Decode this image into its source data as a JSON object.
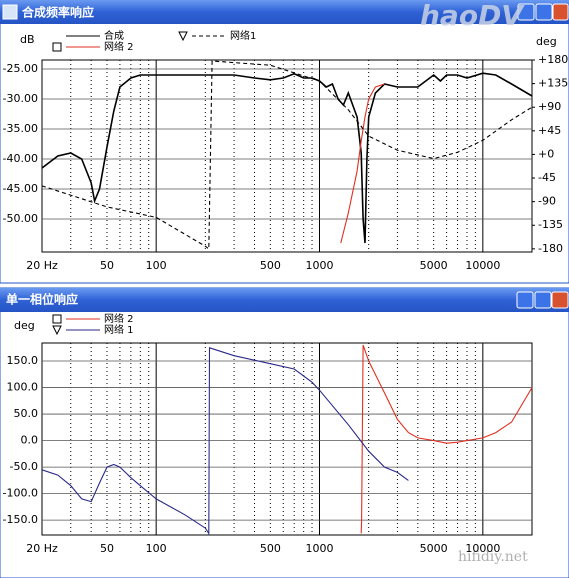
{
  "chart_data": [
    {
      "type": "line",
      "window_title": "合成频率响应",
      "y_label": "dB",
      "y2_label": "deg",
      "log_x": true,
      "xlim": [
        20,
        20000
      ],
      "xticks": [
        {
          "value": 20,
          "label": "20 Hz"
        },
        50,
        100,
        500,
        1000,
        5000,
        10000
      ],
      "xticks_minor": [
        30,
        40,
        60,
        70,
        80,
        90,
        200,
        300,
        400,
        600,
        700,
        800,
        900,
        2000,
        3000,
        4000,
        6000,
        7000,
        8000,
        9000
      ],
      "ylim": [
        -55.5,
        -23.5
      ],
      "yticks": [
        {
          "value": -25,
          "label": "-25.00"
        },
        {
          "value": -30,
          "label": "-30.00"
        },
        {
          "value": -35,
          "label": "-35.00"
        },
        {
          "value": -40,
          "label": "-40.00"
        },
        {
          "value": -45,
          "label": "-45.00"
        },
        {
          "value": -50,
          "label": "-50.00"
        }
      ],
      "y2lim": [
        -186,
        180
      ],
      "y2ticks": [
        {
          "value": 180,
          "label": "+180"
        },
        {
          "value": 135,
          "label": "+135"
        },
        {
          "value": 90,
          "label": "+90"
        },
        {
          "value": 45,
          "label": "+45"
        },
        {
          "value": 0,
          "label": "+0"
        },
        -45,
        -90,
        -135,
        -180
      ],
      "series": [
        {
          "name": "合成",
          "color": "#000000",
          "x": [
            20,
            25,
            30,
            35,
            40,
            42,
            45,
            50,
            55,
            60,
            70,
            80,
            100,
            150,
            200,
            300,
            400,
            500,
            600,
            700,
            800,
            900,
            1000,
            1100,
            1200,
            1300,
            1400,
            1500,
            1700,
            1800,
            1850,
            1900,
            1950,
            2000,
            2200,
            2500,
            3000,
            4000,
            5000,
            5500,
            6000,
            7000,
            8000,
            10000,
            12000,
            15000,
            20000
          ],
          "values": [
            -41.5,
            -39.5,
            -39,
            -40,
            -44,
            -47,
            -45,
            -38,
            -32,
            -28,
            -26.5,
            -26,
            -26,
            -26,
            -26,
            -26,
            -26.5,
            -26.8,
            -26.5,
            -25.8,
            -26.5,
            -26.5,
            -27,
            -28,
            -27.5,
            -30,
            -31,
            -29,
            -33,
            -39,
            -50,
            -54,
            -40,
            -33,
            -29,
            -27.5,
            -28,
            -28,
            -26,
            -27,
            -26,
            -26,
            -26.5,
            -25.7,
            -26,
            -27.5,
            -29.5
          ]
        },
        {
          "name": "网络 2",
          "color": "#e03020",
          "marker": "square",
          "x": [
            1350,
            1500,
            1700,
            1800,
            1900,
            2000,
            2200,
            2500
          ],
          "values": [
            -54,
            -49,
            -42,
            -37,
            -33,
            -30,
            -28,
            -27.5
          ]
        },
        {
          "name": "网络1",
          "color": "#000000",
          "marker": "triangle",
          "dash": true,
          "axis": "y2",
          "x": [
            20,
            50,
            100,
            200,
            210,
            220,
            300,
            500,
            1000,
            1500,
            2000,
            3000,
            5000,
            7000,
            10000,
            15000,
            20000
          ],
          "values": [
            -60,
            -100,
            -120,
            -175,
            -180,
            178,
            175,
            170,
            140,
            85,
            35,
            8,
            -8,
            4,
            27,
            66,
            90
          ]
        }
      ]
    },
    {
      "type": "line",
      "window_title": "单一相位响应",
      "y_label": "deg",
      "log_x": true,
      "xlim": [
        20,
        20000
      ],
      "xticks": [
        {
          "value": 20,
          "label": "20 Hz"
        },
        50,
        100,
        500,
        1000,
        5000,
        10000
      ],
      "xticks_minor": [
        30,
        40,
        60,
        70,
        80,
        90,
        200,
        300,
        400,
        600,
        700,
        800,
        900,
        2000,
        3000,
        4000,
        6000,
        7000,
        8000,
        9000
      ],
      "ylim": [
        -178,
        184
      ],
      "yticks": [
        {
          "value": 150,
          "label": "150.0"
        },
        {
          "value": 100,
          "label": "100.0"
        },
        {
          "value": 50,
          "label": "50.0"
        },
        {
          "value": 0,
          "label": "0.0"
        },
        {
          "value": -50,
          "label": "-50.0"
        },
        {
          "value": -100,
          "label": "-100.0"
        },
        {
          "value": -150,
          "label": "-150.0"
        }
      ],
      "series": [
        {
          "name": "网络 2",
          "color": "#e03020",
          "marker": "square",
          "x": [
            1800,
            1810,
            1850,
            2000,
            2500,
            3000,
            3500,
            4000,
            5000,
            6000,
            7000,
            8000,
            10000,
            12000,
            15000,
            20000
          ],
          "values": [
            -175,
            -150,
            180,
            150,
            90,
            40,
            15,
            5,
            0,
            -5,
            -3,
            0,
            5,
            15,
            35,
            100
          ]
        },
        {
          "name": "网络 1",
          "color": "#2a2a8a",
          "marker": "triangle",
          "x": [
            20,
            25,
            30,
            35,
            40,
            45,
            50,
            55,
            60,
            70,
            80,
            100,
            150,
            200,
            210,
            212,
            300,
            500,
            700,
            900,
            1000,
            1500,
            2000,
            2500,
            3000,
            3500
          ],
          "values": [
            -55,
            -65,
            -85,
            -110,
            -115,
            -80,
            -50,
            -45,
            -50,
            -70,
            -85,
            -110,
            -140,
            -165,
            -175,
            175,
            160,
            145,
            135,
            110,
            95,
            30,
            -20,
            -50,
            -60,
            -75
          ]
        }
      ]
    }
  ],
  "watermarks": [
    "haoDV",
    "hifidiy.net"
  ]
}
